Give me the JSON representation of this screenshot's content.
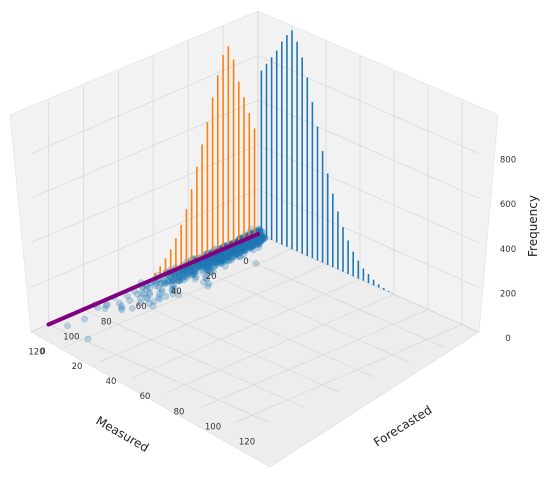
{
  "chart_data": {
    "type": "scatter",
    "projection": "3d",
    "xlabel": "Measured",
    "ylabel": "Forecasted",
    "zlabel": "Frequency",
    "x_ticks": [
      0,
      20,
      40,
      60,
      80,
      100,
      120
    ],
    "y_ticks": [
      0,
      20,
      40,
      60,
      80,
      100,
      120
    ],
    "z_ticks": [
      0,
      200,
      400,
      600,
      800
    ],
    "xlim": [
      0,
      130
    ],
    "ylim": [
      0,
      130
    ],
    "zlim": [
      0,
      1000
    ],
    "grid": true,
    "scatter": {
      "color": "#1f77b4",
      "alpha": 0.25,
      "description_points_x_range": [
        0,
        120
      ],
      "y_value": 0
    },
    "line": {
      "color": "#800080",
      "x": [
        0,
        120
      ],
      "y": [
        0,
        0
      ],
      "z": [
        0,
        0
      ]
    },
    "measured_histogram": {
      "color": "#ff7f0e",
      "bin_centers": [
        2,
        5,
        8,
        11,
        14,
        17,
        20,
        23,
        26,
        29,
        32,
        35,
        38,
        41,
        44,
        47,
        50,
        53,
        56,
        59
      ],
      "counts": [
        480,
        560,
        640,
        720,
        830,
        900,
        870,
        790,
        700,
        600,
        510,
        420,
        330,
        250,
        190,
        140,
        100,
        70,
        45,
        25
      ]
    },
    "forecasted_histogram": {
      "color": "#1f77b4",
      "bin_centers": [
        2,
        5,
        8,
        11,
        14,
        17,
        20,
        23,
        26,
        29,
        32,
        35,
        38,
        41,
        44,
        47,
        50,
        53,
        56,
        59,
        62,
        65,
        68,
        71,
        74,
        77
      ],
      "counts": [
        740,
        780,
        820,
        860,
        910,
        950,
        980,
        940,
        880,
        800,
        700,
        600,
        500,
        410,
        330,
        260,
        200,
        150,
        110,
        80,
        55,
        40,
        25,
        15,
        8,
        4
      ]
    }
  }
}
